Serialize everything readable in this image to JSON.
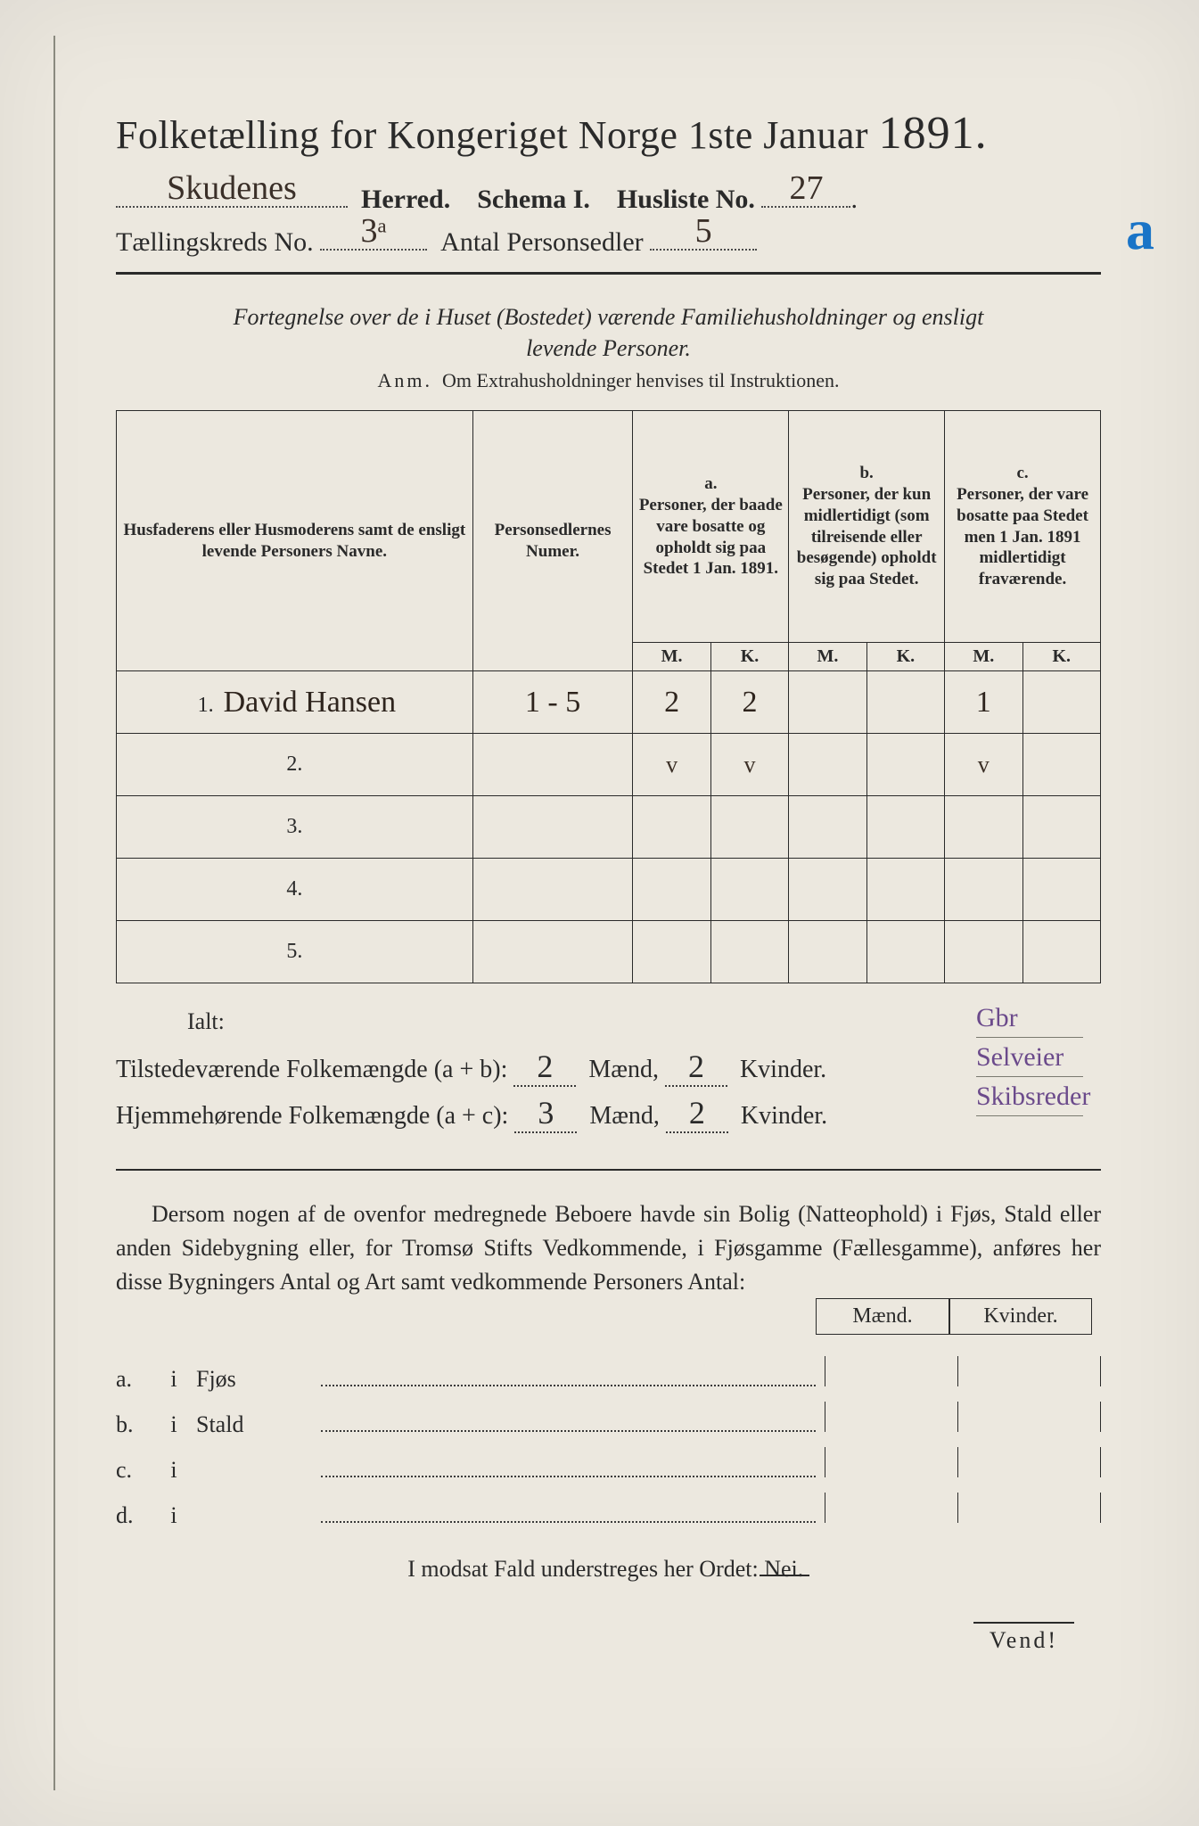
{
  "title_left": "Folketælling for Kongeriget Norge 1ste Januar",
  "title_year": "1891.",
  "header": {
    "herred_value": "Skudenes",
    "herred_label": "Herred.",
    "schema_label": "Schema I.",
    "husliste_label": "Husliste No.",
    "husliste_value": "27",
    "kreds_label": "Tællingskreds No.",
    "kreds_value": "3ᵃ",
    "antal_label": "Antal Personsedler",
    "antal_value": "5",
    "big_letter": "a"
  },
  "intro_line1": "Fortegnelse over de i Huset (Bostedet) værende Familiehusholdninger og ensligt",
  "intro_line2": "levende Personer.",
  "anm_lead": "Anm.",
  "anm_text": "Om Extrahusholdninger henvises til Instruktionen.",
  "table": {
    "name_header": "Husfaderens eller Husmoderens samt de ensligt levende Personers Navne.",
    "num_header": "Personsedlernes Numer.",
    "col_a_label": "a.",
    "col_a_text": "Personer, der baade vare bosatte og opholdt sig paa Stedet 1 Jan. 1891.",
    "col_b_label": "b.",
    "col_b_text": "Personer, der kun midlertidigt (som tilreisende eller besøgende) opholdt sig paa Stedet.",
    "col_c_label": "c.",
    "col_c_text": "Personer, der vare bosatte paa Stedet men 1 Jan. 1891 midlertidigt fraværende.",
    "M": "M.",
    "K": "K.",
    "rows": [
      {
        "n": "1.",
        "name": "David Hansen",
        "num": "1 - 5",
        "aM": "2",
        "aK": "2",
        "bM": "",
        "bK": "",
        "cM": "1",
        "cK": ""
      },
      {
        "n": "2.",
        "name": "",
        "num": "",
        "aM": "v",
        "aK": "v",
        "bM": "",
        "bK": "",
        "cM": "v",
        "cK": ""
      },
      {
        "n": "3.",
        "name": "",
        "num": "",
        "aM": "",
        "aK": "",
        "bM": "",
        "bK": "",
        "cM": "",
        "cK": ""
      },
      {
        "n": "4.",
        "name": "",
        "num": "",
        "aM": "",
        "aK": "",
        "bM": "",
        "bK": "",
        "cM": "",
        "cK": ""
      },
      {
        "n": "5.",
        "name": "",
        "num": "",
        "aM": "",
        "aK": "",
        "bM": "",
        "bK": "",
        "cM": "",
        "cK": ""
      }
    ]
  },
  "margin_notes": [
    "Gbr",
    "Selveier",
    "Skibsreder"
  ],
  "ialt_label": "Ialt:",
  "totals": {
    "line1_label": "Tilstedeværende Folkemængde (a + b):",
    "line1_m": "2",
    "line1_k": "2",
    "line2_label": "Hjemmehørende Folkemængde (a + c):",
    "line2_m": "3",
    "line2_k": "2",
    "maend": "Mænd,",
    "kvinder": "Kvinder."
  },
  "para_text": "Dersom nogen af de ovenfor medregnede Beboere havde sin Bolig (Natteophold) i Fjøs, Stald eller anden Sidebygning eller, for Tromsø Stifts Vedkommende, i Fjøsgamme (Fællesgamme), anføres her disse Bygningers Antal og Art samt vedkommende Personers Antal:",
  "mk_labels": {
    "m": "Mænd.",
    "k": "Kvinder."
  },
  "building_rows": [
    {
      "l": "a.",
      "i": "i",
      "t": "Fjøs"
    },
    {
      "l": "b.",
      "i": "i",
      "t": "Stald"
    },
    {
      "l": "c.",
      "i": "i",
      "t": ""
    },
    {
      "l": "d.",
      "i": "i",
      "t": ""
    }
  ],
  "closing_text": "I modsat Fald understreges her Ordet: Nei.",
  "vend": "Vend!",
  "colors": {
    "paper": "#ece8df",
    "ink": "#2a2a2a",
    "hand_brown": "#3a2f28",
    "hand_blue": "#1a74c7",
    "hand_purple": "#6b4a8b"
  }
}
